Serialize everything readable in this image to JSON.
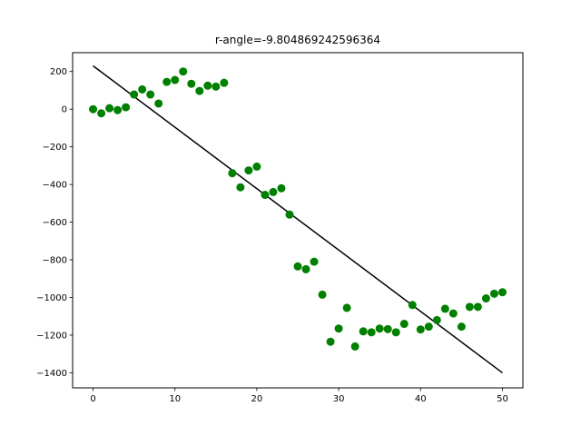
{
  "chart_data": {
    "type": "scatter",
    "title": "r-angle=-9.804869242596364",
    "xlabel": "",
    "ylabel": "",
    "xlim": [
      -2.5,
      52.5
    ],
    "ylim": [
      -1480,
      300
    ],
    "xticks": [
      0,
      10,
      20,
      30,
      40,
      50
    ],
    "yticks": [
      200,
      0,
      -200,
      -400,
      -600,
      -800,
      -1000,
      -1200,
      -1400
    ],
    "grid": false,
    "point_color": "#008000",
    "line_color": "#000000",
    "points": [
      {
        "x": 0,
        "y": 0
      },
      {
        "x": 1,
        "y": -22
      },
      {
        "x": 2,
        "y": 5
      },
      {
        "x": 3,
        "y": -5
      },
      {
        "x": 4,
        "y": 10
      },
      {
        "x": 5,
        "y": 78
      },
      {
        "x": 6,
        "y": 105
      },
      {
        "x": 7,
        "y": 78
      },
      {
        "x": 8,
        "y": 30
      },
      {
        "x": 9,
        "y": 145
      },
      {
        "x": 10,
        "y": 155
      },
      {
        "x": 11,
        "y": 200
      },
      {
        "x": 12,
        "y": 135
      },
      {
        "x": 13,
        "y": 97
      },
      {
        "x": 14,
        "y": 125
      },
      {
        "x": 15,
        "y": 120
      },
      {
        "x": 16,
        "y": 140
      },
      {
        "x": 17,
        "y": -340
      },
      {
        "x": 18,
        "y": -415
      },
      {
        "x": 19,
        "y": -325
      },
      {
        "x": 20,
        "y": -305
      },
      {
        "x": 21,
        "y": -455
      },
      {
        "x": 22,
        "y": -440
      },
      {
        "x": 23,
        "y": -420
      },
      {
        "x": 24,
        "y": -560
      },
      {
        "x": 25,
        "y": -835
      },
      {
        "x": 26,
        "y": -850
      },
      {
        "x": 27,
        "y": -810
      },
      {
        "x": 28,
        "y": -985
      },
      {
        "x": 29,
        "y": -1235
      },
      {
        "x": 30,
        "y": -1165
      },
      {
        "x": 31,
        "y": -1055
      },
      {
        "x": 32,
        "y": -1260
      },
      {
        "x": 33,
        "y": -1180
      },
      {
        "x": 34,
        "y": -1185
      },
      {
        "x": 35,
        "y": -1165
      },
      {
        "x": 36,
        "y": -1168
      },
      {
        "x": 37,
        "y": -1185
      },
      {
        "x": 38,
        "y": -1140
      },
      {
        "x": 39,
        "y": -1040
      },
      {
        "x": 40,
        "y": -1170
      },
      {
        "x": 41,
        "y": -1155
      },
      {
        "x": 42,
        "y": -1120
      },
      {
        "x": 43,
        "y": -1060
      },
      {
        "x": 44,
        "y": -1085
      },
      {
        "x": 45,
        "y": -1155
      },
      {
        "x": 46,
        "y": -1050
      },
      {
        "x": 47,
        "y": -1050
      },
      {
        "x": 48,
        "y": -1005
      },
      {
        "x": 49,
        "y": -980
      },
      {
        "x": 50,
        "y": -972
      }
    ],
    "fit_line": [
      {
        "x": 0,
        "y": 230
      },
      {
        "x": 50,
        "y": -1400
      }
    ]
  }
}
